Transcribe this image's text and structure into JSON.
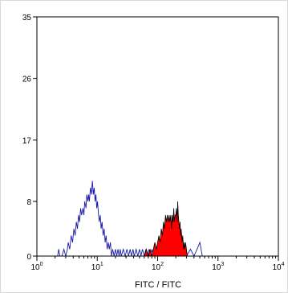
{
  "chart_data": {
    "type": "histogram",
    "xlabel": "FITC / FITC",
    "x_scale": "log",
    "xlim": [
      1,
      10000
    ],
    "ylim": [
      0,
      35
    ],
    "x_ticks": [
      {
        "base": "10",
        "exp": "0",
        "value": 1
      },
      {
        "base": "10",
        "exp": "1",
        "value": 10
      },
      {
        "base": "10",
        "exp": "2",
        "value": 100
      },
      {
        "base": "10",
        "exp": "3",
        "value": 1000
      },
      {
        "base": "10",
        "exp": "4",
        "value": 10000
      }
    ],
    "y_ticks": [
      {
        "label": "0",
        "value": 0
      },
      {
        "label": "8",
        "value": 8
      },
      {
        "label": "17",
        "value": 17
      },
      {
        "label": "26",
        "value": 26
      },
      {
        "label": "35",
        "value": 35
      }
    ],
    "series": [
      {
        "style": "outline",
        "color": "#1a1aa8",
        "points": [
          [
            2.2,
            0
          ],
          [
            2.3,
            1
          ],
          [
            2.4,
            0
          ],
          [
            2.6,
            0
          ],
          [
            2.8,
            1
          ],
          [
            3.0,
            0
          ],
          [
            3.2,
            1
          ],
          [
            3.3,
            2
          ],
          [
            3.5,
            1
          ],
          [
            3.7,
            3
          ],
          [
            3.9,
            2
          ],
          [
            4.1,
            4
          ],
          [
            4.3,
            3
          ],
          [
            4.5,
            5
          ],
          [
            4.7,
            4
          ],
          [
            4.9,
            6
          ],
          [
            5.1,
            5
          ],
          [
            5.3,
            7
          ],
          [
            5.5,
            6
          ],
          [
            5.8,
            7
          ],
          [
            6.0,
            6
          ],
          [
            6.2,
            8
          ],
          [
            6.5,
            7
          ],
          [
            6.7,
            9
          ],
          [
            7.0,
            8
          ],
          [
            7.2,
            9
          ],
          [
            7.4,
            8
          ],
          [
            7.7,
            10
          ],
          [
            8.0,
            9
          ],
          [
            8.3,
            11
          ],
          [
            8.6,
            9
          ],
          [
            8.9,
            10
          ],
          [
            9.2,
            8
          ],
          [
            9.5,
            9
          ],
          [
            9.8,
            7
          ],
          [
            10.1,
            8
          ],
          [
            10.5,
            6
          ],
          [
            10.8,
            5
          ],
          [
            11.2,
            6
          ],
          [
            11.6,
            4
          ],
          [
            12.0,
            5
          ],
          [
            12.5,
            3
          ],
          [
            13.0,
            4
          ],
          [
            13.5,
            2
          ],
          [
            14.0,
            3
          ],
          [
            14.6,
            1
          ],
          [
            15.2,
            2
          ],
          [
            15.8,
            1
          ],
          [
            16.5,
            2
          ],
          [
            17.2,
            0
          ],
          [
            18,
            1
          ],
          [
            19,
            0
          ],
          [
            20,
            1
          ],
          [
            21,
            0
          ],
          [
            22,
            1
          ],
          [
            23,
            0
          ],
          [
            24,
            1
          ],
          [
            25,
            0
          ],
          [
            27,
            1
          ],
          [
            29,
            0
          ],
          [
            31,
            1
          ],
          [
            33,
            0
          ],
          [
            35,
            1
          ],
          [
            37,
            0
          ],
          [
            39,
            1
          ],
          [
            41,
            0
          ],
          [
            44,
            1
          ],
          [
            47,
            0
          ],
          [
            50,
            1
          ],
          [
            53,
            0
          ],
          [
            56,
            1
          ],
          [
            60,
            0
          ],
          [
            64,
            1
          ],
          [
            68,
            0
          ],
          [
            72,
            1
          ],
          [
            76,
            0
          ],
          [
            80,
            1
          ],
          [
            85,
            0
          ],
          [
            90,
            1
          ],
          [
            95,
            0
          ],
          [
            100,
            1
          ],
          [
            106,
            0
          ],
          [
            112,
            1
          ],
          [
            118,
            0
          ],
          [
            125,
            1
          ],
          [
            140,
            0
          ],
          [
            160,
            0
          ],
          [
            190,
            1
          ],
          [
            220,
            0
          ],
          [
            260,
            1
          ],
          [
            300,
            0
          ],
          [
            350,
            1
          ],
          [
            400,
            0
          ],
          [
            450,
            1
          ],
          [
            500,
            2
          ],
          [
            550,
            0
          ]
        ]
      },
      {
        "style": "filled",
        "fill": "#ff0000",
        "color": "#000000",
        "points": [
          [
            60,
            0
          ],
          [
            65,
            1
          ],
          [
            70,
            0
          ],
          [
            75,
            1
          ],
          [
            80,
            0
          ],
          [
            85,
            1
          ],
          [
            90,
            2
          ],
          [
            95,
            1
          ],
          [
            100,
            2
          ],
          [
            105,
            3
          ],
          [
            110,
            2
          ],
          [
            115,
            4
          ],
          [
            120,
            3
          ],
          [
            125,
            5
          ],
          [
            130,
            4
          ],
          [
            135,
            6
          ],
          [
            140,
            5
          ],
          [
            145,
            6
          ],
          [
            150,
            5
          ],
          [
            155,
            6
          ],
          [
            160,
            5
          ],
          [
            165,
            6
          ],
          [
            170,
            4
          ],
          [
            175,
            6
          ],
          [
            180,
            5
          ],
          [
            185,
            7
          ],
          [
            190,
            5
          ],
          [
            195,
            6
          ],
          [
            200,
            6
          ],
          [
            205,
            7
          ],
          [
            210,
            5
          ],
          [
            215,
            8
          ],
          [
            220,
            6
          ],
          [
            225,
            5
          ],
          [
            230,
            4
          ],
          [
            235,
            5
          ],
          [
            240,
            3
          ],
          [
            245,
            4
          ],
          [
            250,
            3
          ],
          [
            255,
            2
          ],
          [
            260,
            3
          ],
          [
            265,
            2
          ],
          [
            270,
            1
          ],
          [
            275,
            2
          ],
          [
            280,
            1
          ],
          [
            290,
            2
          ],
          [
            300,
            1
          ],
          [
            310,
            0
          ]
        ]
      }
    ]
  }
}
